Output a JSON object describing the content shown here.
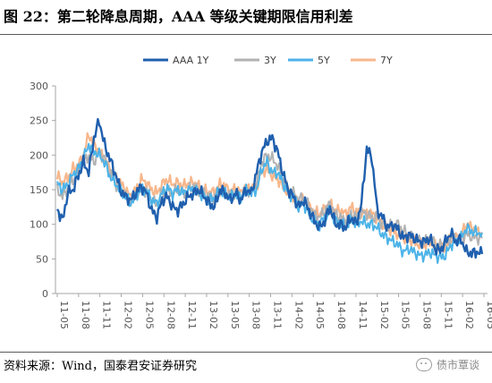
{
  "header": {
    "title": "图 22：第二轮降息周期，AAA 等级关键期限信用利差"
  },
  "footer": {
    "source": "资料来源：Wind，国泰君安证券研究",
    "watermark": "债市覃谈"
  },
  "colors": {
    "AAA 1Y": "#1f5fae",
    "3Y": "#b2b2b2",
    "5Y": "#4cb3e8",
    "7Y": "#f7b78c"
  },
  "chart_data": {
    "type": "line",
    "title": "",
    "xlabel": "",
    "ylabel": "",
    "ylim": [
      0,
      300
    ],
    "yticks": [
      0,
      50,
      100,
      150,
      200,
      250,
      300
    ],
    "grid": false,
    "legend_position": "top",
    "x_tick_labels": [
      "11-05",
      "11-08",
      "11-11",
      "12-02",
      "12-05",
      "12-08",
      "12-11",
      "13-02",
      "13-05",
      "13-08",
      "13-11",
      "14-02",
      "14-05",
      "14-08",
      "14-11",
      "15-02",
      "15-05",
      "15-08",
      "15-11",
      "16-02",
      "16-05"
    ],
    "series": [
      {
        "name": "AAA 1Y",
        "values": [
          122,
          105,
          145,
          150,
          170,
          190,
          175,
          225,
          250,
          215,
          195,
          175,
          150,
          140,
          135,
          145,
          155,
          145,
          120,
          110,
          135,
          140,
          125,
          120,
          130,
          140,
          145,
          150,
          140,
          130,
          125,
          150,
          145,
          135,
          145,
          135,
          150,
          145,
          175,
          205,
          220,
          225,
          205,
          175,
          150,
          140,
          125,
          135,
          120,
          105,
          95,
          105,
          125,
          100,
          100,
          95,
          110,
          100,
          130,
          210,
          195,
          120,
          110,
          95,
          100,
          92,
          80,
          85,
          80,
          75,
          75,
          80,
          65,
          62,
          75,
          88,
          75,
          78,
          60,
          58,
          60,
          57
        ]
      },
      {
        "name": "3Y",
        "values": [
          150,
          140,
          152,
          165,
          175,
          190,
          200,
          190,
          205,
          195,
          175,
          160,
          150,
          140,
          135,
          140,
          150,
          145,
          135,
          130,
          145,
          150,
          145,
          150,
          145,
          150,
          155,
          150,
          145,
          140,
          140,
          150,
          148,
          140,
          148,
          140,
          150,
          148,
          160,
          190,
          200,
          195,
          185,
          165,
          150,
          145,
          135,
          140,
          125,
          115,
          110,
          120,
          130,
          115,
          110,
          105,
          115,
          110,
          118,
          115,
          110,
          110,
          100,
          95,
          100,
          100,
          90,
          85,
          80,
          75,
          75,
          80,
          72,
          70,
          72,
          80,
          78,
          80,
          85,
          82,
          80,
          80
        ]
      },
      {
        "name": "5Y",
        "values": [
          160,
          150,
          158,
          172,
          180,
          195,
          215,
          205,
          200,
          190,
          170,
          160,
          150,
          140,
          130,
          140,
          152,
          148,
          135,
          130,
          145,
          152,
          145,
          150,
          145,
          150,
          150,
          145,
          140,
          135,
          138,
          150,
          145,
          138,
          145,
          138,
          148,
          145,
          150,
          180,
          190,
          175,
          175,
          160,
          145,
          140,
          125,
          130,
          115,
          105,
          100,
          110,
          120,
          105,
          102,
          95,
          108,
          100,
          105,
          100,
          100,
          95,
          85,
          80,
          75,
          70,
          60,
          65,
          60,
          55,
          55,
          60,
          55,
          52,
          55,
          70,
          75,
          80,
          95,
          90,
          88,
          88
        ]
      },
      {
        "name": "7Y",
        "values": [
          170,
          160,
          168,
          180,
          185,
          200,
          230,
          215,
          205,
          195,
          180,
          170,
          160,
          150,
          140,
          150,
          165,
          160,
          150,
          145,
          158,
          165,
          158,
          160,
          155,
          160,
          160,
          155,
          150,
          145,
          148,
          158,
          155,
          148,
          152,
          145,
          155,
          150,
          155,
          175,
          180,
          170,
          165,
          155,
          145,
          140,
          130,
          135,
          125,
          118,
          115,
          122,
          130,
          120,
          120,
          115,
          125,
          118,
          120,
          115,
          115,
          110,
          100,
          95,
          90,
          85,
          80,
          78,
          75,
          70,
          70,
          75,
          68,
          66,
          68,
          78,
          80,
          85,
          100,
          95,
          90,
          88
        ]
      }
    ]
  }
}
